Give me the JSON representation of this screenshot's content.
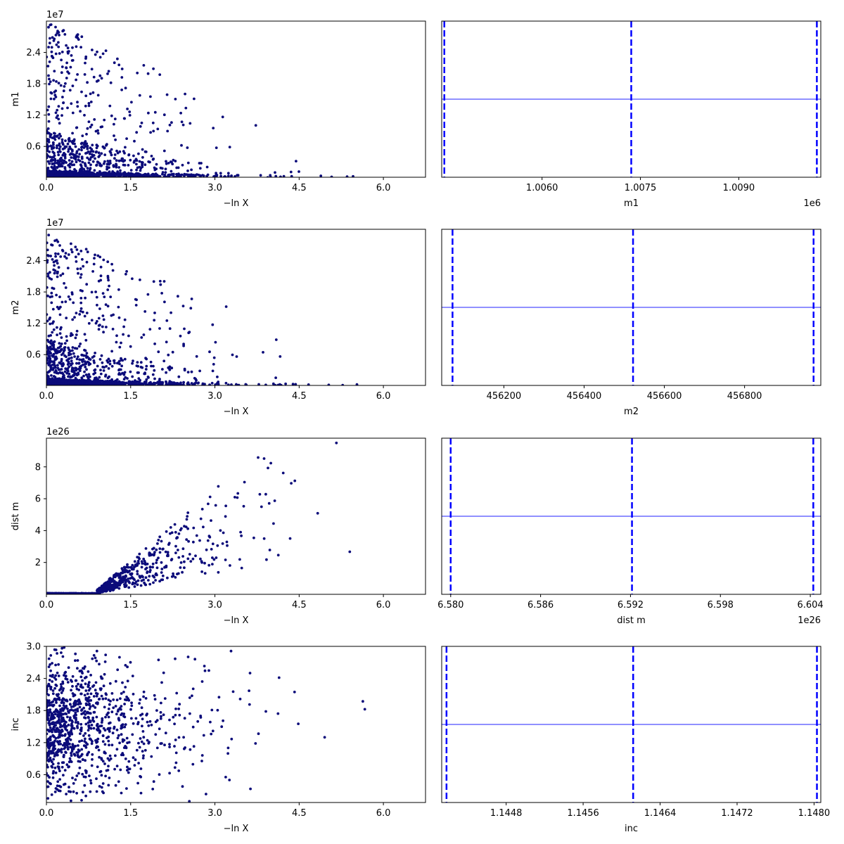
{
  "colors": {
    "scatter_points": "#0b0b7a",
    "quantile_lines": "#0000ff",
    "median_hline": "#6b6bff",
    "axes": "#000000",
    "background": "#ffffff"
  },
  "chart_data": [
    {
      "type": "scatter",
      "parameter": "m1",
      "xlabel": "−ln X",
      "ylabel": "m1",
      "y_exponent": "1e7",
      "xlim": [
        0,
        6.75
      ],
      "ylim": [
        0.01,
        3.0
      ],
      "xticks": [
        0.0,
        1.5,
        3.0,
        4.5,
        6.0
      ],
      "xtick_labels": [
        "0.0",
        "1.5",
        "3.0",
        "4.5",
        "6.0"
      ],
      "yticks": [
        0.6,
        1.2,
        1.8,
        2.4
      ],
      "ytick_labels": [
        "0.6",
        "1.2",
        "1.8",
        "2.4"
      ],
      "pattern": "m1",
      "n_points": 1500,
      "seed": 11
    },
    {
      "type": "trace",
      "parameter": "m1",
      "xlabel": "m1",
      "x_exponent": "1e6",
      "xlim": [
        1.00447,
        1.01025
      ],
      "xticks": [
        1.006,
        1.0075,
        1.009
      ],
      "xtick_labels": [
        "1.0060",
        "1.0075",
        "1.0090"
      ],
      "quantiles": [
        1.00451,
        1.00736,
        1.01019
      ],
      "median_level": 0.5,
      "yticks": []
    },
    {
      "type": "scatter",
      "parameter": "m2",
      "xlabel": "−ln X",
      "ylabel": "m2",
      "y_exponent": "1e7",
      "xlim": [
        0,
        6.75
      ],
      "ylim": [
        0.01,
        3.0
      ],
      "xticks": [
        0.0,
        1.5,
        3.0,
        4.5,
        6.0
      ],
      "xtick_labels": [
        "0.0",
        "1.5",
        "3.0",
        "4.5",
        "6.0"
      ],
      "yticks": [
        0.6,
        1.2,
        1.8,
        2.4
      ],
      "ytick_labels": [
        "0.6",
        "1.2",
        "1.8",
        "2.4"
      ],
      "pattern": "m2",
      "n_points": 1500,
      "seed": 23
    },
    {
      "type": "trace",
      "parameter": "m2",
      "xlabel": "m2",
      "x_exponent": "",
      "xlim": [
        456045,
        456990
      ],
      "xticks": [
        456200,
        456400,
        456600,
        456800
      ],
      "xtick_labels": [
        "456200",
        "456400",
        "456600",
        "456800"
      ],
      "quantiles": [
        456072,
        456522,
        456972
      ],
      "median_level": 0.5,
      "yticks": []
    },
    {
      "type": "scatter",
      "parameter": "dist m",
      "xlabel": "−ln X",
      "ylabel": "dist m",
      "y_exponent": "1e26",
      "xlim": [
        0,
        6.75
      ],
      "ylim": [
        0.0,
        9.8
      ],
      "xticks": [
        0.0,
        1.5,
        3.0,
        4.5,
        6.0
      ],
      "xtick_labels": [
        "0.0",
        "1.5",
        "3.0",
        "4.5",
        "6.0"
      ],
      "yticks": [
        2,
        4,
        6,
        8
      ],
      "ytick_labels": [
        "2",
        "4",
        "6",
        "8"
      ],
      "pattern": "dist",
      "n_points": 1400,
      "seed": 37
    },
    {
      "type": "trace",
      "parameter": "dist m",
      "xlabel": "dist m",
      "x_exponent": "1e26",
      "xlim": [
        6.5794,
        6.6047
      ],
      "xticks": [
        6.58,
        6.586,
        6.592,
        6.598,
        6.604
      ],
      "xtick_labels": [
        "6.580",
        "6.586",
        "6.592",
        "6.598",
        "6.604"
      ],
      "quantiles": [
        6.58,
        6.5921,
        6.6042
      ],
      "median_level": 0.5,
      "yticks": []
    },
    {
      "type": "scatter",
      "parameter": "inc",
      "xlabel": "−ln X",
      "ylabel": "inc",
      "y_exponent": "",
      "xlim": [
        0,
        6.75
      ],
      "ylim": [
        0.08,
        3.0
      ],
      "xticks": [
        0.0,
        1.5,
        3.0,
        4.5,
        6.0
      ],
      "xtick_labels": [
        "0.0",
        "1.5",
        "3.0",
        "4.5",
        "6.0"
      ],
      "yticks": [
        0.6,
        1.2,
        1.8,
        2.4,
        3.0
      ],
      "ytick_labels": [
        "0.6",
        "1.2",
        "1.8",
        "2.4",
        "3.0"
      ],
      "pattern": "inc",
      "n_points": 1000,
      "seed": 53
    },
    {
      "type": "trace",
      "parameter": "inc",
      "xlabel": "inc",
      "x_exponent": "",
      "xlim": [
        1.14413,
        1.14807
      ],
      "xticks": [
        1.1448,
        1.1456,
        1.1464,
        1.1472,
        1.148
      ],
      "xtick_labels": [
        "1.1448",
        "1.1456",
        "1.1464",
        "1.1472",
        "1.1480"
      ],
      "quantiles": [
        1.14418,
        1.14612,
        1.14803
      ],
      "median_level": 0.5,
      "yticks": []
    }
  ]
}
